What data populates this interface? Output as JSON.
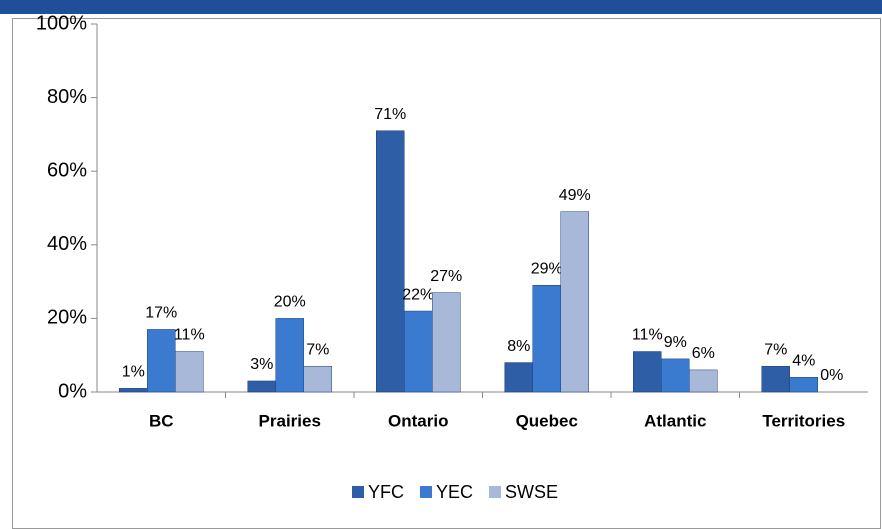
{
  "chart_data": {
    "type": "bar",
    "categories": [
      "BC",
      "Prairies",
      "Ontario",
      "Quebec",
      "Atlantic",
      "Territories"
    ],
    "series": [
      {
        "name": "YFC",
        "color": "#2d5ea6",
        "values": [
          1,
          3,
          71,
          8,
          11,
          7
        ],
        "value_labels": [
          "1%",
          "3%",
          "71%",
          "8%",
          "11%",
          "7%"
        ]
      },
      {
        "name": "YEC",
        "color": "#3a7bd0",
        "values": [
          17,
          20,
          22,
          29,
          9,
          4
        ],
        "value_labels": [
          "17%",
          "20%",
          "22%",
          "29%",
          "9%",
          "4%"
        ]
      },
      {
        "name": "SWSE",
        "color": "#a8b8d8",
        "values": [
          11,
          7,
          27,
          49,
          6,
          0
        ],
        "value_labels": [
          "11%",
          "7%",
          "27%",
          "49%",
          "6%",
          "0%"
        ]
      }
    ],
    "ylim": [
      0,
      100
    ],
    "yticks": [
      {
        "value": 0,
        "label": "0%"
      },
      {
        "value": 20,
        "label": "20%"
      },
      {
        "value": 40,
        "label": "40%"
      },
      {
        "value": 60,
        "label": "60%"
      },
      {
        "value": 80,
        "label": "80%"
      },
      {
        "value": 100,
        "label": "100%"
      }
    ],
    "legend": "bottom"
  }
}
